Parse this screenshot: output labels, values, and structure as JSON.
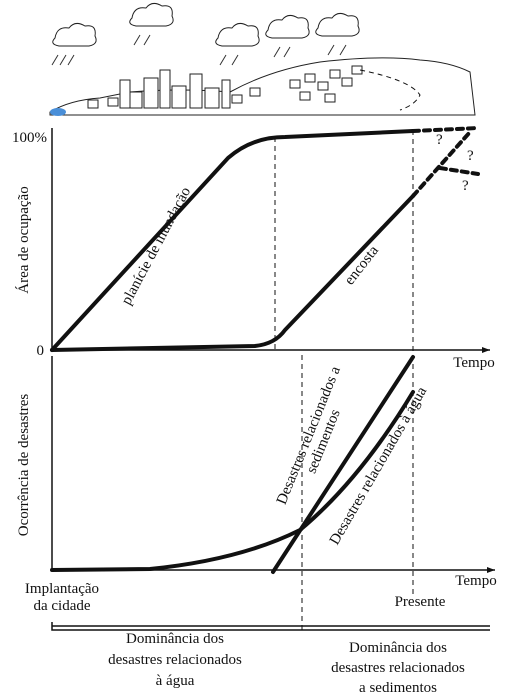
{
  "illustration": {},
  "top_chart": {
    "y_axis_label": "Área de ocupação",
    "y_max_label": "100%",
    "y_min_label": "0",
    "x_axis_label": "Tempo",
    "curves": [
      "planície de inundação",
      "encosta"
    ],
    "uncertainty_marks": [
      "?",
      "?",
      "?"
    ]
  },
  "bottom_chart": {
    "y_axis_label": "Ocorrência de desastres",
    "x_axis_label": "Tempo",
    "curves": [
      [
        "Desastres relacionados a",
        "sedimentos"
      ],
      [
        "Desastres relacionados à água"
      ]
    ]
  },
  "timeline": {
    "start_label": [
      "Implantação",
      "da cidade"
    ],
    "end_label": "Presente",
    "periods": [
      [
        "Dominância dos",
        "desastres relacionados",
        "à água"
      ],
      [
        "Dominância dos",
        "desastres relacionados",
        "a sedimentos"
      ]
    ]
  }
}
